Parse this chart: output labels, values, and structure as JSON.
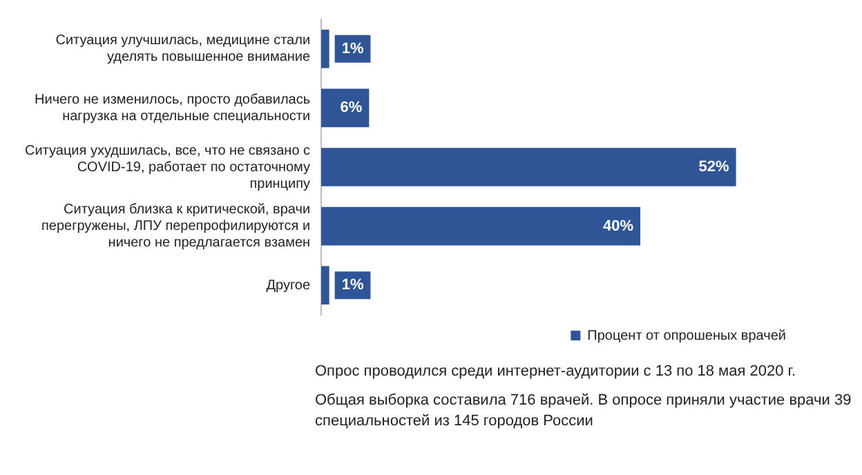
{
  "chart_data": {
    "type": "bar",
    "orientation": "horizontal",
    "categories": [
      "Ситуация улучшилась, медицине стали уделять повышенное внимание",
      "Ничего не изменилось, просто добавилась нагрузка на отдельные специальности",
      "Ситуация ухудшилась, все, что не связано с COVID-19, работает по остаточному принципу",
      "Ситуация близка к критической, врачи перегружены, ЛПУ перепрофилируются и ничего не предлагается взамен",
      "Другое"
    ],
    "series": [
      {
        "name": "Процент от опрошеных врачей",
        "color": "#2f5597",
        "values": [
          1,
          6,
          52,
          40,
          1
        ],
        "value_labels": [
          "1%",
          "6%",
          "52%",
          "40%",
          "1%"
        ]
      }
    ],
    "legend": "bottom right",
    "grid": false,
    "annotations": [
      "Опрос проводился среди интернет-аудитории с 13 по 18 мая 2020 г.",
      "Общая выборка составила 716 врачей. В опросе приняли участие врачи 39 специальностей из 145 городов России"
    ]
  }
}
